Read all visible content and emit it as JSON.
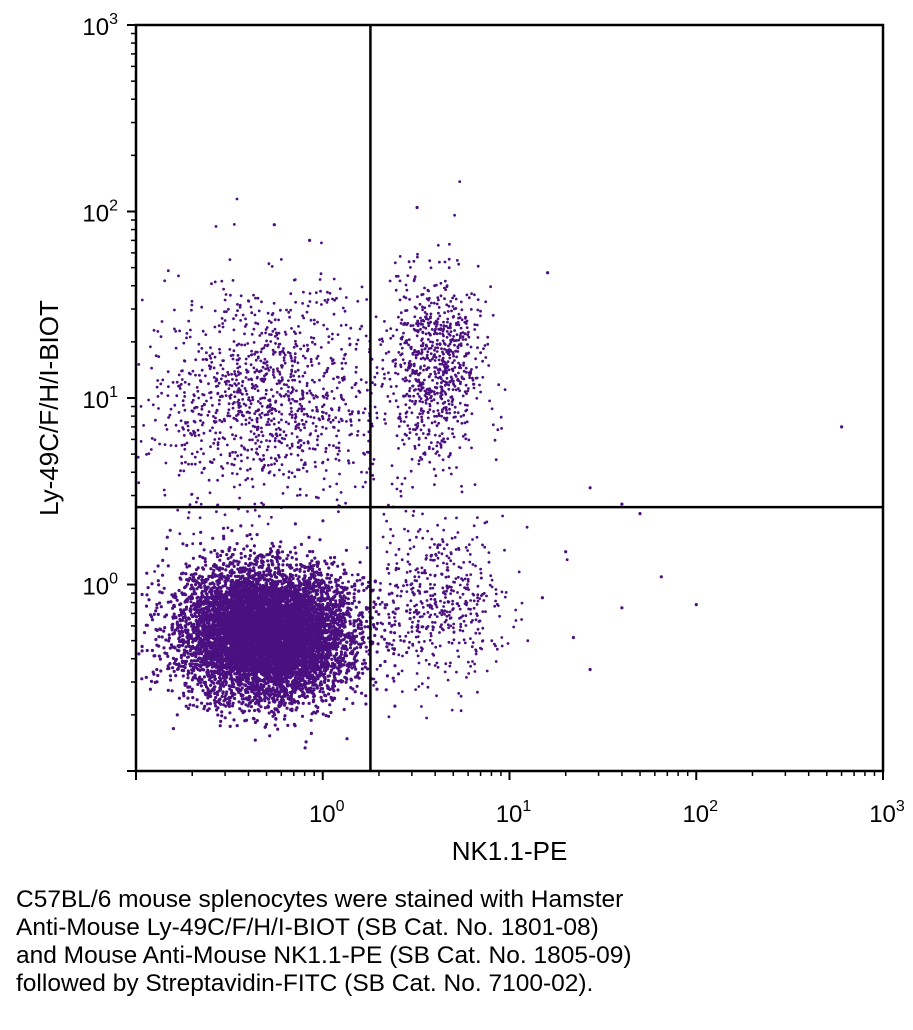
{
  "chart_data": {
    "type": "scatter",
    "xlabel": "NK1.1-PE",
    "ylabel": "Ly-49C/F/H/I-BIOT",
    "xscale": "log",
    "yscale": "log",
    "xlim": [
      0.1,
      1000
    ],
    "ylim": [
      0.1,
      1000
    ],
    "x_ticks": [
      {
        "base": "10",
        "exp": "0"
      },
      {
        "base": "10",
        "exp": "1"
      },
      {
        "base": "10",
        "exp": "2"
      },
      {
        "base": "10",
        "exp": "3"
      }
    ],
    "y_ticks": [
      {
        "base": "10",
        "exp": "0"
      },
      {
        "base": "10",
        "exp": "1"
      },
      {
        "base": "10",
        "exp": "2"
      },
      {
        "base": "10",
        "exp": "3"
      }
    ],
    "quadrant_gates": {
      "x": 1.8,
      "y": 2.6
    },
    "point_color": "#4b1080",
    "populations": [
      {
        "description": "main double-negative cluster",
        "x_center": 0.5,
        "y_center": 0.55,
        "approx_count": 9000
      },
      {
        "description": "Ly-49 single positive (upper-left)",
        "x_center": 0.5,
        "y_center": 10,
        "approx_count": 1200
      },
      {
        "description": "NK1.1+ Ly-49+ (upper-right)",
        "x_center": 4,
        "y_center": 15,
        "approx_count": 800
      },
      {
        "description": "NK1.1+ Ly-49- (lower-right)",
        "x_center": 4,
        "y_center": 0.8,
        "approx_count": 500
      }
    ],
    "outliers": [
      [
        3.2,
        105
      ],
      [
        0.85,
        70
      ],
      [
        0.55,
        85
      ],
      [
        16,
        47
      ],
      [
        600,
        7
      ],
      [
        27,
        3.3
      ],
      [
        40,
        2.7
      ],
      [
        50,
        2.4
      ],
      [
        65,
        1.1
      ],
      [
        100,
        0.78
      ],
      [
        40,
        0.75
      ],
      [
        22,
        0.52
      ],
      [
        27,
        0.35
      ],
      [
        15,
        0.85
      ],
      [
        20,
        1.5
      ]
    ]
  },
  "caption": {
    "lines": [
      "C57BL/6 mouse splenocytes were stained with Hamster",
      "Anti-Mouse Ly-49C/F/H/I-BIOT (SB Cat. No. 1801-08)",
      "and Mouse Anti-Mouse NK1.1-PE (SB Cat. No. 1805-09)",
      "followed by Streptavidin-FITC (SB Cat. No. 7100-02)."
    ]
  }
}
